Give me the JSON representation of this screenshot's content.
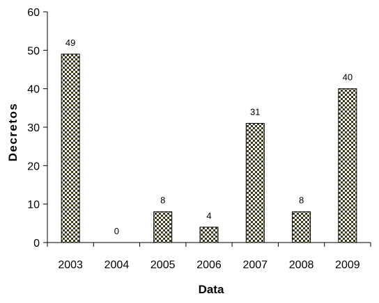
{
  "chart_data": {
    "type": "bar",
    "categories": [
      "2003",
      "2004",
      "2005",
      "2006",
      "2007",
      "2008",
      "2009"
    ],
    "values": [
      49,
      0,
      8,
      4,
      31,
      8,
      40
    ],
    "data_labels": [
      "49",
      "0",
      "8",
      "4",
      "31",
      "8",
      "40"
    ],
    "title": "",
    "xlabel": "Data",
    "ylabel": "Decretos",
    "ylim": [
      0,
      60
    ],
    "yticks": [
      0,
      10,
      20,
      30,
      40,
      50,
      60
    ],
    "grid": false,
    "legend": "none",
    "bar_fill": "checkered",
    "colors": {
      "bar_dark": "#3a3a1a",
      "bar_light": "#ffffff",
      "axis": "#000000"
    }
  }
}
